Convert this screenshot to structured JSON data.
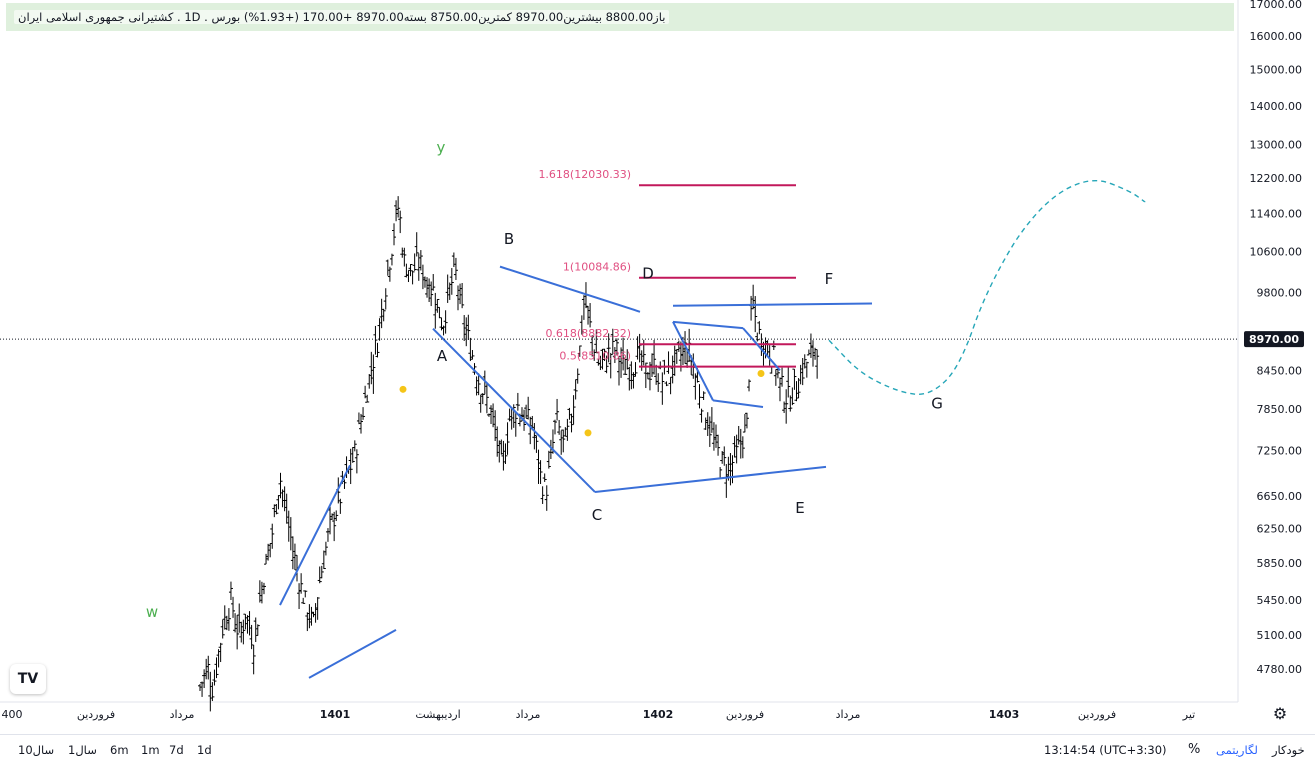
{
  "legend": {
    "text": "باز8800.00  بیشترین8970.00  کمترین8750.00  بسته8970.00  +170.00  (+1.93%)  بورس . 1D . کشتیرانی جمهوری اسلامی ایران"
  },
  "logo_text": "TV",
  "gear": "⚙",
  "bottom_bar": {
    "ranges": [
      "10سال",
      "1سال",
      "6m",
      "1m",
      "7d",
      "1d"
    ],
    "time": "13:14:54 (UTC+3:30)",
    "percent": "%",
    "log": "لگاریتمی",
    "auto": "خودکار"
  },
  "chart_data": {
    "type": "candlestick",
    "price_axis": {
      "scale": "log",
      "ticks": [
        4780,
        5100,
        5450,
        5850,
        6250,
        6650,
        7250,
        7850,
        8450,
        9800,
        10600,
        11400,
        12200,
        13000,
        14000,
        15000,
        16000,
        17000
      ],
      "tick_labels": [
        "4780.00",
        "5100.00",
        "5450.00",
        "5850.00",
        "6250.00",
        "6650.00",
        "7250.00",
        "7850.00",
        "8450.00",
        "9800.00",
        "10600.00",
        "11400.00",
        "12200.00",
        "13000.00",
        "14000.00",
        "15000.00",
        "16000.00",
        "17000.00"
      ],
      "last_price": 8970,
      "last_price_label": "8970.00"
    },
    "time_axis": {
      "labels": [
        "400",
        "فروردین",
        "مرداد",
        "1401",
        "اردیبهشت",
        "مرداد",
        "1402",
        "فروردین",
        "مرداد",
        "1403",
        "فروردین",
        "تیر"
      ],
      "bold": [
        "1401",
        "1402",
        "1403"
      ]
    },
    "price_path": [
      [
        4620,
        0
      ],
      [
        4800,
        6
      ],
      [
        4600,
        10
      ],
      [
        5200,
        18
      ],
      [
        5450,
        24
      ],
      [
        5100,
        30
      ],
      [
        5300,
        36
      ],
      [
        5000,
        42
      ],
      [
        5600,
        48
      ],
      [
        6200,
        56
      ],
      [
        6900,
        62
      ],
      [
        6500,
        66
      ],
      [
        6000,
        72
      ],
      [
        5600,
        78
      ],
      [
        5300,
        84
      ],
      [
        5200,
        88
      ],
      [
        5600,
        92
      ],
      [
        6200,
        100
      ],
      [
        6700,
        110
      ],
      [
        7200,
        120
      ],
      [
        8000,
        128
      ],
      [
        9000,
        138
      ],
      [
        10600,
        148
      ],
      [
        11600,
        154
      ],
      [
        10400,
        158
      ],
      [
        10200,
        164
      ],
      [
        10400,
        170
      ],
      [
        10000,
        176
      ],
      [
        9800,
        182
      ],
      [
        9200,
        188
      ],
      [
        9900,
        194
      ],
      [
        10200,
        198
      ],
      [
        9300,
        204
      ],
      [
        8800,
        210
      ],
      [
        8300,
        216
      ],
      [
        8000,
        222
      ],
      [
        7600,
        228
      ],
      [
        7000,
        234
      ],
      [
        7700,
        240
      ],
      [
        7900,
        246
      ],
      [
        7700,
        252
      ],
      [
        7600,
        258
      ],
      [
        6900,
        264
      ],
      [
        6700,
        268
      ],
      [
        7100,
        272
      ],
      [
        7700,
        276
      ],
      [
        7300,
        282
      ],
      [
        7700,
        288
      ],
      [
        8700,
        294
      ],
      [
        9700,
        298
      ],
      [
        9000,
        304
      ],
      [
        8500,
        310
      ],
      [
        8700,
        316
      ],
      [
        8800,
        322
      ],
      [
        8500,
        328
      ],
      [
        8500,
        334
      ],
      [
        8700,
        340
      ],
      [
        8400,
        346
      ],
      [
        8500,
        352
      ],
      [
        8300,
        358
      ],
      [
        8400,
        364
      ],
      [
        8600,
        370
      ],
      [
        8800,
        376
      ],
      [
        8700,
        380
      ],
      [
        8200,
        386
      ],
      [
        7800,
        392
      ],
      [
        7400,
        398
      ],
      [
        7100,
        404
      ],
      [
        7000,
        410
      ],
      [
        7200,
        416
      ],
      [
        7400,
        420
      ],
      [
        7600,
        424
      ],
      [
        9700,
        428
      ],
      [
        9100,
        432
      ],
      [
        8900,
        438
      ],
      [
        8700,
        444
      ],
      [
        8200,
        450
      ],
      [
        8000,
        456
      ],
      [
        8200,
        462
      ],
      [
        8500,
        468
      ],
      [
        8700,
        474
      ],
      [
        8970,
        480
      ]
    ],
    "wave_lines": [
      [
        [
          5400,
          280
        ],
        [
          7050,
          350
        ]
      ],
      [
        [
          4700,
          309
        ],
        [
          5150,
          396
        ]
      ],
      [
        [
          9150,
          433
        ],
        [
          6700,
          595
        ]
      ],
      [
        [
          10300,
          500
        ],
        [
          9450,
          640
        ]
      ],
      [
        [
          6700,
          595
        ],
        [
          7030,
          826
        ]
      ],
      [
        [
          9560,
          673
        ],
        [
          9600,
          872
        ]
      ],
      [
        [
          9270,
          673
        ],
        [
          9160,
          743
        ]
      ],
      [
        [
          9160,
          743
        ],
        [
          8450,
          780
        ]
      ],
      [
        [
          9270,
          673
        ],
        [
          7980,
          713
        ]
      ],
      [
        [
          7980,
          713
        ],
        [
          7880,
          763
        ]
      ]
    ],
    "wave_labels": [
      {
        "text": "y",
        "price": 12800,
        "x": 441,
        "color": "#4caf50"
      },
      {
        "text": "w",
        "price": 5280,
        "x": 152,
        "color": "#4caf50"
      },
      {
        "text": "A",
        "price": 8600,
        "x": 442,
        "color": "#131722"
      },
      {
        "text": "B",
        "price": 10750,
        "x": 509,
        "color": "#131722"
      },
      {
        "text": "C",
        "price": 6350,
        "x": 597,
        "color": "#131722"
      },
      {
        "text": "D",
        "price": 10070,
        "x": 648,
        "color": "#131722"
      },
      {
        "text": "E",
        "price": 6440,
        "x": 800,
        "color": "#131722"
      },
      {
        "text": "F",
        "price": 9960,
        "x": 829,
        "color": "#131722"
      },
      {
        "text": "G",
        "price": 7860,
        "x": 937,
        "color": "#131722"
      }
    ],
    "fib_levels": [
      {
        "label": "1.618(12030.33)",
        "price": 12030.33
      },
      {
        "label": "1(10084.86)",
        "price": 10084.86
      },
      {
        "label": "0.618(8882.32)",
        "price": 8882.32
      },
      {
        "label": "0.5(8510.86)",
        "price": 8510.86
      }
    ],
    "dots": [
      {
        "price": 8150,
        "x": 403
      },
      {
        "price": 7500,
        "x": 588
      },
      {
        "price": 8400,
        "x": 761
      }
    ],
    "projection_path": [
      [
        8950,
        829
      ],
      [
        8400,
        860
      ],
      [
        8100,
        900
      ],
      [
        8050,
        930
      ],
      [
        8500,
        960
      ],
      [
        10000,
        990
      ],
      [
        11600,
        1040
      ],
      [
        12250,
        1090
      ],
      [
        11900,
        1130
      ],
      [
        11650,
        1145
      ]
    ],
    "colors": {
      "candle": "#000000",
      "wave_line": "#3a6fd8",
      "fib": "#c2185b",
      "fib_label": "#e05082",
      "projection": "#26a6b8",
      "dot": "#f5c518",
      "legend_bg": "#dff0dd"
    }
  }
}
